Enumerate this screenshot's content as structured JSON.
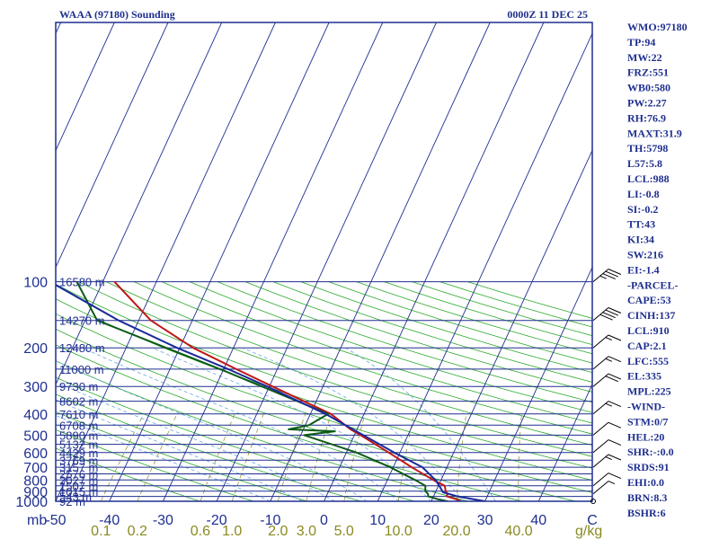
{
  "chart_data": {
    "type": "line",
    "title": "WAAA (97180) Sounding",
    "time_label": "0000Z 11 DEC 25",
    "pressure_unit": "mb",
    "mixing_ratio_unit": "g/kg",
    "pressure_levels": [
      100,
      200,
      300,
      400,
      500,
      600,
      700,
      800,
      900,
      1000
    ],
    "temperature_ticks": [
      -50,
      -40,
      -30,
      -20,
      -10,
      0,
      10,
      20,
      30,
      40
    ],
    "temperature_range": [
      -50,
      50
    ],
    "mixing_ratio_ticks": [
      "0.1",
      "0.2",
      "0.6",
      "1.0",
      "2.0",
      "3.0",
      "5.0",
      "10.0",
      "20.0",
      "40.0"
    ],
    "mixing_ratio_values": [
      0.1,
      0.2,
      0.6,
      1.0,
      2.0,
      3.0,
      5.0,
      10.0,
      20.0,
      40.0
    ],
    "height_labels": [
      {
        "p": 100,
        "label": "16580 m"
      },
      {
        "p": 150,
        "label": "14270 m"
      },
      {
        "p": 200,
        "label": "12480 m"
      },
      {
        "p": 250,
        "label": "11000 m"
      },
      {
        "p": 300,
        "label": "9730 m"
      },
      {
        "p": 350,
        "label": "8602 m"
      },
      {
        "p": 400,
        "label": "7610 m"
      },
      {
        "p": 450,
        "label": "6708 m"
      },
      {
        "p": 500,
        "label": "5890 m"
      },
      {
        "p": 550,
        "label": "5132 m"
      },
      {
        "p": 600,
        "label": "4429 m"
      },
      {
        "p": 650,
        "label": "3769 m"
      },
      {
        "p": 700,
        "label": "3157 m"
      },
      {
        "p": 750,
        "label": "2576 m"
      },
      {
        "p": 800,
        "label": "2027 m"
      },
      {
        "p": 850,
        "label": "1507 m"
      },
      {
        "p": 900,
        "label": "1015 m"
      },
      {
        "p": 950,
        "label": "543 m"
      },
      {
        "p": 1000,
        "label": "92 m"
      }
    ],
    "series": [
      {
        "name": "Temperature",
        "color": "#c01818",
        "points": [
          {
            "p": 1000,
            "t": 25.6
          },
          {
            "p": 980,
            "t": 24.4
          },
          {
            "p": 950,
            "t": 22.0
          },
          {
            "p": 925,
            "t": 21.6
          },
          {
            "p": 900,
            "t": 20.8
          },
          {
            "p": 850,
            "t": 19.6
          },
          {
            "p": 800,
            "t": 16.4
          },
          {
            "p": 700,
            "t": 10.0
          },
          {
            "p": 600,
            "t": 3.0
          },
          {
            "p": 500,
            "t": -5.5
          },
          {
            "p": 470,
            "t": -8.5
          },
          {
            "p": 400,
            "t": -15.0
          },
          {
            "p": 300,
            "t": -31.0
          },
          {
            "p": 250,
            "t": -41.0
          },
          {
            "p": 200,
            "t": -53.0
          },
          {
            "p": 150,
            "t": -66.0
          },
          {
            "p": 100,
            "t": -80.0
          }
        ]
      },
      {
        "name": "Dewpoint",
        "color": "#0c5a18",
        "points": [
          {
            "p": 1000,
            "t": 23.0
          },
          {
            "p": 980,
            "t": 21.0
          },
          {
            "p": 950,
            "t": 18.5
          },
          {
            "p": 925,
            "t": 18.0
          },
          {
            "p": 900,
            "t": 17.0
          },
          {
            "p": 850,
            "t": 16.0
          },
          {
            "p": 800,
            "t": 13.0
          },
          {
            "p": 700,
            "t": 6.0
          },
          {
            "p": 600,
            "t": -3.0
          },
          {
            "p": 500,
            "t": -16.0
          },
          {
            "p": 480,
            "t": -11.0
          },
          {
            "p": 470,
            "t": -20.0
          },
          {
            "p": 450,
            "t": -17.0
          },
          {
            "p": 400,
            "t": -15.5
          },
          {
            "p": 300,
            "t": -33.0
          },
          {
            "p": 250,
            "t": -44.0
          },
          {
            "p": 200,
            "t": -58.0
          },
          {
            "p": 150,
            "t": -76.0
          },
          {
            "p": 100,
            "t": -87.0
          }
        ]
      },
      {
        "name": "Parcel",
        "color": "#1a2a9a",
        "points": [
          {
            "p": 1000,
            "t": 30.0
          },
          {
            "p": 950,
            "t": 24.0
          },
          {
            "p": 910,
            "t": 20.5
          },
          {
            "p": 850,
            "t": 18.6
          },
          {
            "p": 800,
            "t": 16.8
          },
          {
            "p": 700,
            "t": 12.0
          },
          {
            "p": 600,
            "t": 4.0
          },
          {
            "p": 500,
            "t": -5.0
          },
          {
            "p": 400,
            "t": -16.0
          },
          {
            "p": 300,
            "t": -32.0
          },
          {
            "p": 250,
            "t": -42.5
          },
          {
            "p": 200,
            "t": -56.0
          },
          {
            "p": 150,
            "t": -72.0
          },
          {
            "p": 100,
            "t": -92.0
          }
        ]
      }
    ],
    "wind_barbs": [
      {
        "p": 1000,
        "knots": 0
      },
      {
        "p": 925,
        "knots": 5
      },
      {
        "p": 850,
        "knots": 10
      },
      {
        "p": 700,
        "knots": 15
      },
      {
        "p": 600,
        "knots": 10
      },
      {
        "p": 500,
        "knots": 10
      },
      {
        "p": 400,
        "knots": 15
      },
      {
        "p": 300,
        "knots": 20
      },
      {
        "p": 250,
        "knots": 15
      },
      {
        "p": 200,
        "knots": 15
      },
      {
        "p": 150,
        "knots": 40
      },
      {
        "p": 100,
        "knots": 35
      }
    ],
    "indices": [
      "WMO:97180",
      "TP:94",
      "MW:22",
      "FRZ:551",
      "WB0:580",
      "PW:2.27",
      "RH:76.9",
      "MAXT:31.9",
      "TH:5798",
      "L57:5.8",
      "LCL:988",
      "LI:-0.8",
      "SI:-0.2",
      "TT:43",
      "KI:34",
      "SW:216",
      "EI:-1.4",
      "-PARCEL-",
      "CAPE:53",
      "CINH:137",
      "LCL:910",
      "CAP:2.1",
      "LFC:555",
      "EL:335",
      "MPL:225",
      "-WIND-",
      "STM:0/7",
      "HEL:20",
      "SHR:-:0.0",
      "SRDS:91",
      "EHI:0.0",
      "BRN:8.3",
      "BSHR:6"
    ],
    "colors": {
      "isobar": "#1f2f8f",
      "isotherm": "#1f2f8f",
      "dry_adiabat": "#2aa82a",
      "moist_adiabat": "#6aa8e8",
      "mixing_ratio": "#8a8a20",
      "frame": "#1f2f8f"
    }
  }
}
